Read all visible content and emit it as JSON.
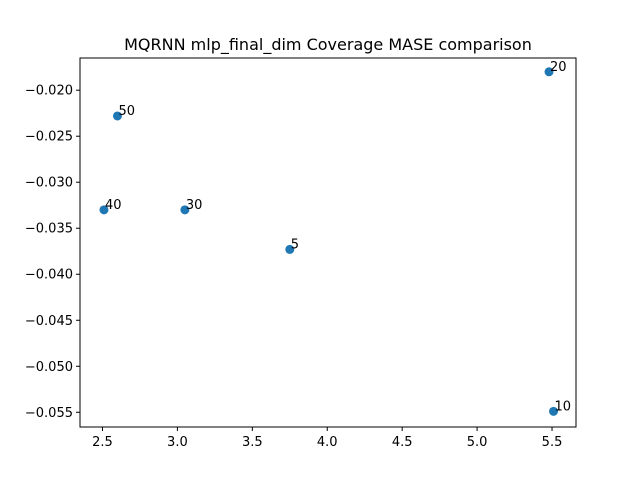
{
  "chart_data": {
    "type": "scatter",
    "title": "MQRNN mlp_final_dim Coverage MASE comparison",
    "xlabel": "",
    "ylabel": "",
    "xlim": [
      2.35,
      5.66
    ],
    "ylim": [
      -0.0566,
      -0.0165
    ],
    "xticks": [
      2.5,
      3.0,
      3.5,
      4.0,
      4.5,
      5.0,
      5.5
    ],
    "xtick_labels": [
      "2.5",
      "3.0",
      "3.5",
      "4.0",
      "4.5",
      "5.0",
      "5.5"
    ],
    "yticks": [
      -0.055,
      -0.05,
      -0.045,
      -0.04,
      -0.035,
      -0.03,
      -0.025,
      -0.02
    ],
    "ytick_labels": [
      "−0.055",
      "−0.050",
      "−0.045",
      "−0.040",
      "−0.035",
      "−0.030",
      "−0.025",
      "−0.020"
    ],
    "grid": false,
    "marker_color": "#1f77b4",
    "points": [
      {
        "x": 2.51,
        "y": -0.033,
        "label": "40"
      },
      {
        "x": 2.6,
        "y": -0.0228,
        "label": "50"
      },
      {
        "x": 3.05,
        "y": -0.033,
        "label": "30"
      },
      {
        "x": 3.75,
        "y": -0.0373,
        "label": "5"
      },
      {
        "x": 5.48,
        "y": -0.018,
        "label": "20"
      },
      {
        "x": 5.51,
        "y": -0.0549,
        "label": "10"
      }
    ]
  }
}
